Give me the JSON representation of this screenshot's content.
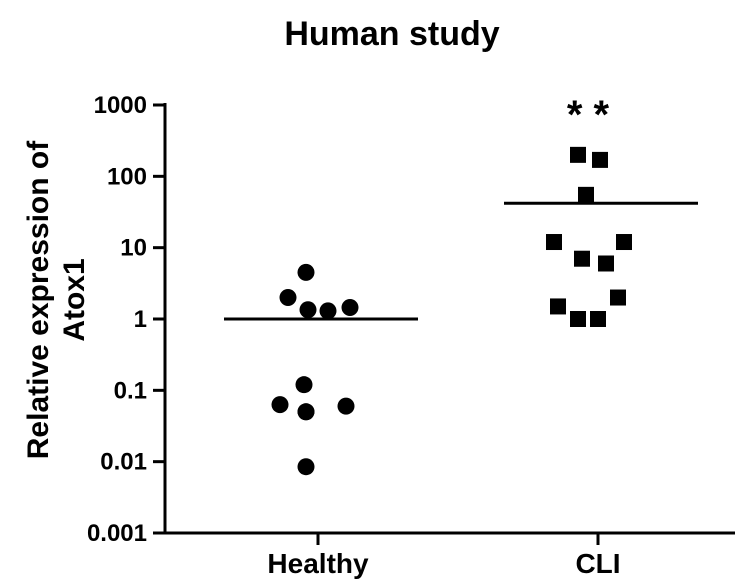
{
  "chart_data": {
    "type": "scatter",
    "title": "Human study",
    "ylabel_lines": [
      "Relative expression of",
      "Atox1"
    ],
    "xlabel": "",
    "yscale": "log",
    "ylim": [
      0.001,
      1000
    ],
    "yticks": [
      {
        "value": 1000,
        "label": "1000"
      },
      {
        "value": 100,
        "label": "100"
      },
      {
        "value": 10,
        "label": "10"
      },
      {
        "value": 1,
        "label": "1"
      },
      {
        "value": 0.1,
        "label": "0.1"
      },
      {
        "value": 0.01,
        "label": "0.01"
      },
      {
        "value": 0.001,
        "label": "0.001"
      }
    ],
    "categories": [
      "Healthy",
      "CLI"
    ],
    "groups": [
      {
        "category": "Healthy",
        "marker": "circle",
        "mean": 1.0,
        "points": [
          4.5,
          2.0,
          1.35,
          1.3,
          1.45,
          0.12,
          0.063,
          0.05,
          0.05,
          0.06,
          0.0085
        ]
      },
      {
        "category": "CLI",
        "marker": "square",
        "mean": 42,
        "points": [
          200,
          170,
          55,
          12,
          12,
          7,
          6,
          1.5,
          2.0,
          1.0,
          1.0
        ],
        "annotation": "* *"
      }
    ],
    "grid": false,
    "legend": "none",
    "color": "#000000"
  }
}
